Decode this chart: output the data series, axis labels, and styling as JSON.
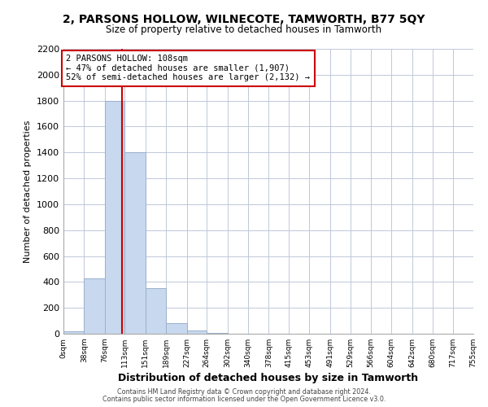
{
  "title": "2, PARSONS HOLLOW, WILNECOTE, TAMWORTH, B77 5QY",
  "subtitle": "Size of property relative to detached houses in Tamworth",
  "xlabel": "Distribution of detached houses by size in Tamworth",
  "ylabel": "Number of detached properties",
  "bin_edges": [
    0,
    38,
    76,
    113,
    151,
    189,
    227,
    264,
    302,
    340,
    378,
    415,
    453,
    491,
    529,
    566,
    604,
    642,
    680,
    717,
    755
  ],
  "bin_labels": [
    "0sqm",
    "38sqm",
    "76sqm",
    "113sqm",
    "151sqm",
    "189sqm",
    "227sqm",
    "264sqm",
    "302sqm",
    "340sqm",
    "378sqm",
    "415sqm",
    "453sqm",
    "491sqm",
    "529sqm",
    "566sqm",
    "604sqm",
    "642sqm",
    "680sqm",
    "717sqm",
    "755sqm"
  ],
  "bar_heights": [
    20,
    430,
    1800,
    1400,
    350,
    80,
    25,
    5,
    0,
    0,
    0,
    0,
    0,
    0,
    0,
    0,
    0,
    0,
    0,
    0
  ],
  "bar_color": "#c8d8ee",
  "bar_edge_color": "#9ab0cc",
  "vline_x": 108,
  "vline_color": "#cc0000",
  "ylim": [
    0,
    2200
  ],
  "annotation_title": "2 PARSONS HOLLOW: 108sqm",
  "annotation_line1": "← 47% of detached houses are smaller (1,907)",
  "annotation_line2": "52% of semi-detached houses are larger (2,132) →",
  "annotation_box_color": "#ffffff",
  "annotation_box_edge_color": "#cc0000",
  "background_color": "#ffffff",
  "grid_color": "#c0c8d8",
  "footer_line1": "Contains HM Land Registry data © Crown copyright and database right 2024.",
  "footer_line2": "Contains public sector information licensed under the Open Government Licence v3.0."
}
